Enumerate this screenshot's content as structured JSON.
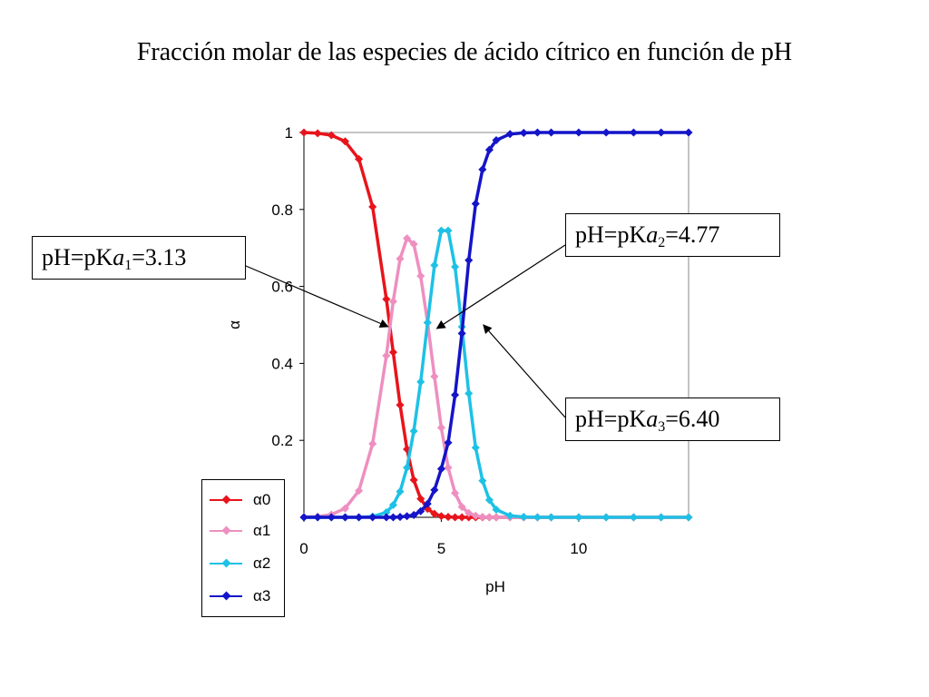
{
  "title": "Fracción molar de las especies de ácido cítrico en función de pH",
  "chart_data": {
    "type": "line",
    "xlabel": "pH",
    "ylabel": "α",
    "xlim": [
      0,
      14
    ],
    "ylim": [
      0,
      1
    ],
    "x_ticks": [
      "0",
      "5",
      "10"
    ],
    "y_ticks": [
      "0.2",
      "0.4",
      "0.6",
      "0.8",
      "1"
    ],
    "grid": false,
    "legend_position": "bottom-left",
    "pKa": [
      3.13,
      4.77,
      6.4
    ],
    "x": [
      0,
      0.5,
      1,
      1.5,
      2,
      2.5,
      3,
      3.25,
      3.5,
      3.75,
      4,
      4.25,
      4.5,
      4.75,
      5,
      5.25,
      5.5,
      5.75,
      6,
      6.25,
      6.5,
      6.75,
      7,
      7.5,
      8,
      8.5,
      9,
      10,
      11,
      12,
      13,
      14
    ],
    "series": [
      {
        "name": "α0",
        "color": "#e8141c",
        "values": [
          1.0,
          0.998,
          0.993,
          0.977,
          0.931,
          0.807,
          0.567,
          0.429,
          0.292,
          0.177,
          0.097,
          0.048,
          0.022,
          0.009,
          0.003,
          0.001,
          0.0,
          0.0,
          0.0,
          0.0,
          0.0,
          0.0,
          0.0,
          0.0,
          0.0,
          0.0,
          0.0,
          0.0,
          0.0,
          0.0,
          0.0,
          0.0
        ]
      },
      {
        "name": "α1",
        "color": "#ee8fc0",
        "values": [
          0.001,
          0.002,
          0.007,
          0.023,
          0.069,
          0.191,
          0.42,
          0.561,
          0.672,
          0.725,
          0.71,
          0.627,
          0.506,
          0.366,
          0.233,
          0.129,
          0.063,
          0.027,
          0.011,
          0.004,
          0.001,
          0.0,
          0.0,
          0.0,
          0.0,
          0.0,
          0.0,
          0.0,
          0.0,
          0.0,
          0.0,
          0.0
        ]
      },
      {
        "name": "α2",
        "color": "#1ec1e6",
        "values": [
          0.0,
          0.0,
          0.0,
          0.0,
          0.0,
          0.002,
          0.013,
          0.032,
          0.067,
          0.129,
          0.224,
          0.352,
          0.506,
          0.655,
          0.745,
          0.745,
          0.651,
          0.495,
          0.322,
          0.181,
          0.095,
          0.045,
          0.02,
          0.004,
          0.001,
          0.0,
          0.0,
          0.0,
          0.0,
          0.0,
          0.0,
          0.0
        ]
      },
      {
        "name": "α3",
        "color": "#1414c8",
        "values": [
          0.0,
          0.0,
          0.0,
          0.0,
          0.0,
          0.0,
          0.0,
          0.0,
          0.001,
          0.003,
          0.006,
          0.016,
          0.035,
          0.071,
          0.126,
          0.194,
          0.318,
          0.478,
          0.668,
          0.815,
          0.904,
          0.955,
          0.98,
          0.996,
          0.999,
          1.0,
          1.0,
          1.0,
          1.0,
          1.0,
          1.0,
          1.0
        ]
      }
    ]
  },
  "callouts": [
    {
      "prefix": "pH=pK",
      "italic": "a",
      "sub": "1",
      "value": "=3.13"
    },
    {
      "prefix": "pH=pK",
      "italic": "a",
      "sub": "2",
      "value": "=4.77"
    },
    {
      "prefix": "pH=pK",
      "italic": "a",
      "sub": "3",
      "value": "=6.40"
    }
  ]
}
